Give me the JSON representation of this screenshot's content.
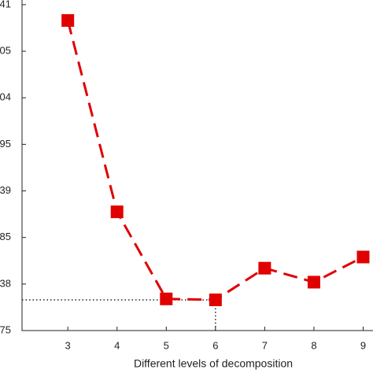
{
  "chart_data": {
    "type": "line",
    "xlabel": "Different levels of decomposition",
    "x": [
      3,
      4,
      5,
      6,
      7,
      8,
      9
    ],
    "series": [
      {
        "color": "#e00000",
        "values": [
          6.66,
          2.55,
          0.68,
          0.66,
          1.34,
          1.04,
          1.58
        ]
      }
    ],
    "xlim": [
      2.07,
      9.2
    ],
    "xticks": [
      3,
      4,
      5,
      6,
      7,
      8,
      9
    ],
    "ylim": [
      0,
      7.1
    ],
    "yticks": [
      {
        "value": 0,
        "label": "75"
      },
      {
        "value": 1,
        "label": "38"
      },
      {
        "value": 2,
        "label": "85"
      },
      {
        "value": 3,
        "label": "39"
      },
      {
        "value": 4,
        "label": "95"
      },
      {
        "value": 5,
        "label": "04"
      },
      {
        "value": 6,
        "label": "05"
      },
      {
        "value": 7,
        "label": "41"
      }
    ],
    "min_marker_index": 3
  }
}
